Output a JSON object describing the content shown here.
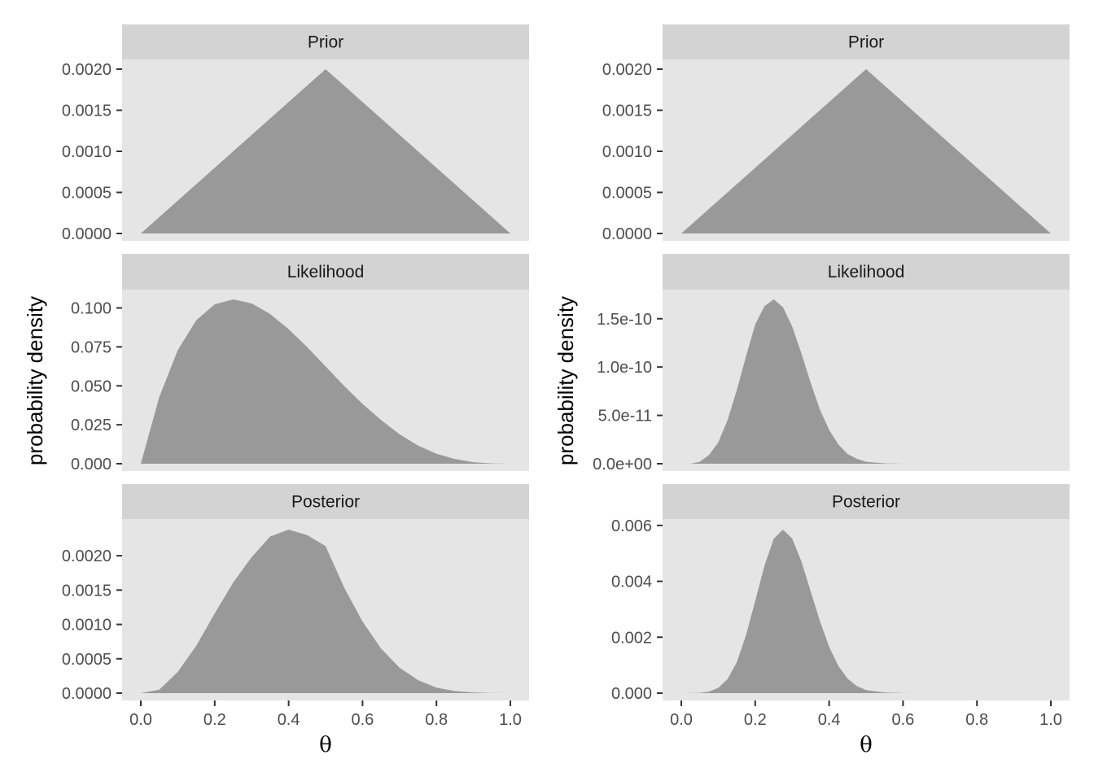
{
  "colors": {
    "panel_background": "#e5e5e5",
    "strip_background": "#d3d3d3",
    "area_fill": "#999999",
    "tick_text": "#4d4d4d",
    "tick_mark": "#333333"
  },
  "chart_data": [
    {
      "type": "area",
      "column": "left",
      "ylabel": "probability density",
      "xlabel": "θ",
      "x_ticks": [
        "0.0",
        "0.2",
        "0.4",
        "0.6",
        "0.8",
        "1.0"
      ],
      "xlim": [
        0,
        1
      ],
      "panels": [
        {
          "title": "Prior",
          "ylim": [
            0,
            0.002
          ],
          "y_ticks": [
            {
              "value": 0,
              "label": "0.0000"
            },
            {
              "value": 0.0005,
              "label": "0.0005"
            },
            {
              "value": 0.001,
              "label": "0.0010"
            },
            {
              "value": 0.0015,
              "label": "0.0015"
            },
            {
              "value": 0.002,
              "label": "0.0020"
            }
          ],
          "x": [
            0,
            0.5,
            1
          ],
          "y": [
            0,
            0.002,
            0
          ]
        },
        {
          "title": "Likelihood",
          "ylim": [
            0,
            0.1055
          ],
          "y_ticks": [
            {
              "value": 0,
              "label": "0.000"
            },
            {
              "value": 0.025,
              "label": "0.025"
            },
            {
              "value": 0.05,
              "label": "0.050"
            },
            {
              "value": 0.075,
              "label": "0.075"
            },
            {
              "value": 0.1,
              "label": "0.100"
            }
          ],
          "x": [
            0,
            0.05,
            0.1,
            0.15,
            0.2,
            0.25,
            0.3,
            0.35,
            0.4,
            0.45,
            0.5,
            0.55,
            0.6,
            0.65,
            0.7,
            0.75,
            0.8,
            0.85,
            0.9,
            0.95,
            1
          ],
          "y": [
            0,
            0.0429,
            0.0729,
            0.0921,
            0.1024,
            0.1055,
            0.1029,
            0.0961,
            0.0864,
            0.0749,
            0.0625,
            0.05,
            0.0384,
            0.0281,
            0.0189,
            0.0117,
            0.0064,
            0.003,
            0.001,
            0.0002,
            0
          ]
        },
        {
          "title": "Posterior",
          "ylim": [
            0,
            0.00238
          ],
          "y_ticks": [
            {
              "value": 0,
              "label": "0.0000"
            },
            {
              "value": 0.0005,
              "label": "0.0005"
            },
            {
              "value": 0.001,
              "label": "0.0010"
            },
            {
              "value": 0.0015,
              "label": "0.0015"
            },
            {
              "value": 0.002,
              "label": "0.0020"
            }
          ],
          "x": [
            0,
            0.05,
            0.1,
            0.15,
            0.2,
            0.25,
            0.3,
            0.35,
            0.4,
            0.45,
            0.5,
            0.55,
            0.6,
            0.65,
            0.7,
            0.75,
            0.8,
            0.85,
            0.9,
            0.95,
            1
          ],
          "y": [
            0,
            5e-05,
            0.00031,
            0.00069,
            0.00116,
            0.00161,
            0.00198,
            0.00228,
            0.00238,
            0.0023,
            0.00214,
            0.00154,
            0.00104,
            0.00065,
            0.00037,
            0.00019,
            8e-05,
            3e-05,
            1e-05,
            1e-06,
            0
          ]
        }
      ]
    },
    {
      "type": "area",
      "column": "right",
      "ylabel": "probability density",
      "xlabel": "θ",
      "x_ticks": [
        "0.0",
        "0.2",
        "0.4",
        "0.6",
        "0.8",
        "1.0"
      ],
      "xlim": [
        0,
        1
      ],
      "panels": [
        {
          "title": "Prior",
          "ylim": [
            0,
            0.002
          ],
          "y_ticks": [
            {
              "value": 0,
              "label": "0.0000"
            },
            {
              "value": 0.0005,
              "label": "0.0005"
            },
            {
              "value": 0.001,
              "label": "0.0010"
            },
            {
              "value": 0.0015,
              "label": "0.0015"
            },
            {
              "value": 0.002,
              "label": "0.0020"
            }
          ],
          "x": [
            0,
            0.5,
            1
          ],
          "y": [
            0,
            0.002,
            0
          ]
        },
        {
          "title": "Likelihood",
          "ylim": [
            0,
            1.7e-10
          ],
          "y_ticks": [
            {
              "value": 0,
              "label": "0.0e+00"
            },
            {
              "value": 5e-11,
              "label": "5.0e-11"
            },
            {
              "value": 1e-10,
              "label": "1.0e-10"
            },
            {
              "value": 1.5e-10,
              "label": "1.5e-10"
            }
          ],
          "x": [
            0,
            0.025,
            0.05,
            0.075,
            0.1,
            0.125,
            0.15,
            0.175,
            0.2,
            0.225,
            0.25,
            0.275,
            0.3,
            0.325,
            0.35,
            0.375,
            0.4,
            0.425,
            0.45,
            0.475,
            0.5,
            0.55,
            0.6,
            0.65,
            0.7,
            1
          ],
          "y": [
            0,
            0,
            2e-12,
            9e-12,
            2.2e-11,
            4.5e-11,
            7.6e-11,
            1.11e-10,
            1.44e-10,
            1.63e-10,
            1.7e-10,
            1.62e-10,
            1.42e-10,
            1.14e-10,
            8.4e-11,
            5.6e-11,
            3.5e-11,
            2e-11,
            1e-11,
            5e-12,
            2e-12,
            4e-13,
            0,
            0,
            0,
            0
          ]
        },
        {
          "title": "Posterior",
          "ylim": [
            0,
            0.00585
          ],
          "y_ticks": [
            {
              "value": 0,
              "label": "0.000"
            },
            {
              "value": 0.002,
              "label": "0.002"
            },
            {
              "value": 0.004,
              "label": "0.004"
            },
            {
              "value": 0.006,
              "label": "0.006"
            }
          ],
          "x": [
            0,
            0.05,
            0.075,
            0.1,
            0.125,
            0.15,
            0.175,
            0.2,
            0.225,
            0.25,
            0.275,
            0.3,
            0.325,
            0.35,
            0.375,
            0.4,
            0.425,
            0.45,
            0.475,
            0.5,
            0.55,
            0.6,
            0.65,
            1
          ],
          "y": [
            0,
            1e-05,
            5e-05,
            0.00019,
            0.0005,
            0.0011,
            0.00207,
            0.0033,
            0.00456,
            0.00552,
            0.00585,
            0.00553,
            0.00471,
            0.00364,
            0.00258,
            0.00166,
            0.00097,
            0.00052,
            0.00025,
            0.00011,
            2e-05,
            2e-06,
            0,
            0
          ]
        }
      ]
    }
  ]
}
